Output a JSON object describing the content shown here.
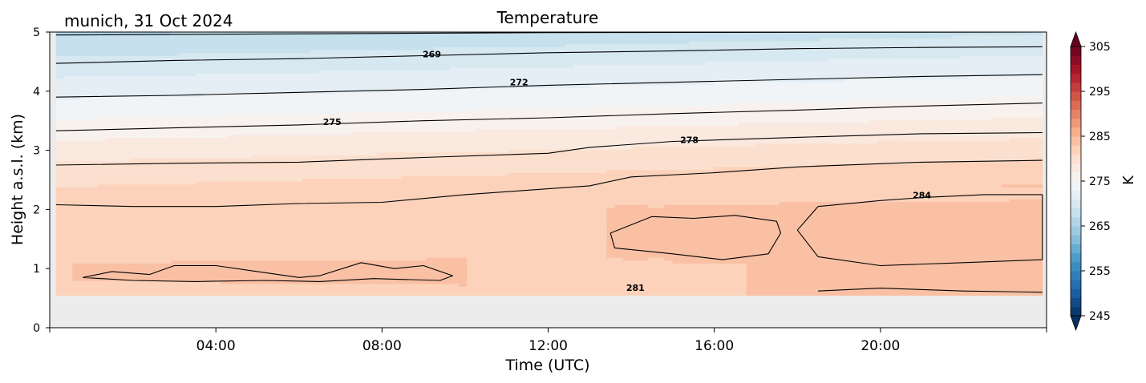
{
  "chart_data": {
    "type": "heatmap",
    "title": "Temperature",
    "location_label": "munich, 31 Oct 2024",
    "xlabel": "Time (UTC)",
    "ylabel": "Height a.s.l. (km)",
    "x_unit": "hours UTC on 31 Oct 2024",
    "xlim": [
      0,
      24
    ],
    "ylim": [
      0,
      5
    ],
    "x_ticks": [
      4,
      8,
      12,
      16,
      20
    ],
    "x_tick_labels": [
      "04:00",
      "08:00",
      "12:00",
      "16:00",
      "20:00"
    ],
    "y_ticks": [
      0,
      1,
      2,
      3,
      4,
      5
    ],
    "y_tick_labels": [
      "0",
      "1",
      "2",
      "3",
      "4",
      "5"
    ],
    "data_start_hour": 0.15,
    "data_end_hour": 23.9,
    "data_min_height_km": 0.55,
    "colormap": "RdBu_r",
    "colorbar": {
      "label": "K",
      "min": 245,
      "max": 305,
      "step": 2,
      "extend": "both",
      "ticks": [
        245,
        255,
        265,
        275,
        285,
        295,
        305
      ],
      "tick_labels": [
        "245",
        "255",
        "265",
        "275",
        "285",
        "295",
        "305"
      ]
    },
    "contour_levels": [
      269,
      272,
      275,
      278,
      281,
      284
    ],
    "contour_labels": [
      {
        "text": "269",
        "x": 9.2,
        "y": 4.63
      },
      {
        "text": "272",
        "x": 11.3,
        "y": 4.15
      },
      {
        "text": "275",
        "x": 6.8,
        "y": 3.48
      },
      {
        "text": "278",
        "x": 15.4,
        "y": 3.18
      },
      {
        "text": "281",
        "x": 14.1,
        "y": 0.68
      },
      {
        "text": "284",
        "x": 21.0,
        "y": 2.24
      }
    ],
    "isotherms": [
      {
        "level": 266,
        "points": [
          [
            0.15,
            4.95
          ],
          [
            6,
            4.97
          ],
          [
            12,
            4.99
          ],
          [
            23.9,
            5.0
          ]
        ]
      },
      {
        "level": 269,
        "points": [
          [
            0.15,
            4.47
          ],
          [
            3,
            4.52
          ],
          [
            6,
            4.55
          ],
          [
            9,
            4.6
          ],
          [
            12,
            4.65
          ],
          [
            15,
            4.68
          ],
          [
            18,
            4.72
          ],
          [
            21,
            4.74
          ],
          [
            23.9,
            4.75
          ]
        ]
      },
      {
        "level": 272,
        "points": [
          [
            0.15,
            3.9
          ],
          [
            3,
            3.93
          ],
          [
            6,
            3.98
          ],
          [
            9,
            4.03
          ],
          [
            12,
            4.1
          ],
          [
            15,
            4.15
          ],
          [
            18,
            4.2
          ],
          [
            21,
            4.25
          ],
          [
            23.9,
            4.28
          ]
        ]
      },
      {
        "level": 275,
        "points": [
          [
            0.15,
            3.33
          ],
          [
            3,
            3.38
          ],
          [
            6,
            3.43
          ],
          [
            9,
            3.5
          ],
          [
            12,
            3.55
          ],
          [
            15,
            3.62
          ],
          [
            18,
            3.68
          ],
          [
            21,
            3.75
          ],
          [
            23.9,
            3.8
          ]
        ]
      },
      {
        "level": 278,
        "points": [
          [
            0.15,
            2.75
          ],
          [
            3,
            2.78
          ],
          [
            6,
            2.8
          ],
          [
            9,
            2.88
          ],
          [
            12,
            2.95
          ],
          [
            13,
            3.05
          ],
          [
            15,
            3.15
          ],
          [
            18,
            3.22
          ],
          [
            21,
            3.28
          ],
          [
            23.9,
            3.3
          ]
        ]
      },
      {
        "level": 281,
        "points": [
          [
            0.15,
            2.08
          ],
          [
            2,
            2.05
          ],
          [
            4,
            2.05
          ],
          [
            6,
            2.1
          ],
          [
            8,
            2.12
          ],
          [
            10,
            2.25
          ],
          [
            12,
            2.35
          ],
          [
            13,
            2.4
          ],
          [
            14,
            2.55
          ],
          [
            16,
            2.62
          ],
          [
            18,
            2.72
          ],
          [
            21,
            2.8
          ],
          [
            23.9,
            2.83
          ]
        ]
      },
      {
        "level": 281,
        "points": [
          [
            18.5,
            0.62
          ],
          [
            20,
            0.67
          ],
          [
            22,
            0.62
          ],
          [
            23.9,
            0.6
          ]
        ]
      },
      {
        "level": 281,
        "points": [
          [
            0.8,
            0.85
          ],
          [
            1.5,
            0.95
          ],
          [
            2.4,
            0.9
          ],
          [
            3,
            1.05
          ],
          [
            4,
            1.05
          ],
          [
            5,
            0.95
          ],
          [
            6,
            0.85
          ],
          [
            6.5,
            0.88
          ],
          [
            7.5,
            1.1
          ],
          [
            8.3,
            1.0
          ],
          [
            9,
            1.05
          ],
          [
            9.7,
            0.88
          ],
          [
            9.4,
            0.8
          ],
          [
            7.8,
            0.83
          ],
          [
            6.5,
            0.78
          ],
          [
            5.2,
            0.8
          ],
          [
            3.5,
            0.78
          ],
          [
            2,
            0.8
          ],
          [
            0.8,
            0.85
          ]
        ]
      },
      {
        "level": 284,
        "points": [
          [
            18,
            1.65
          ],
          [
            18.5,
            2.05
          ],
          [
            20,
            2.15
          ],
          [
            21,
            2.2
          ],
          [
            22.5,
            2.25
          ],
          [
            23.9,
            2.25
          ],
          [
            23.9,
            1.15
          ],
          [
            22,
            1.1
          ],
          [
            20,
            1.05
          ],
          [
            18.5,
            1.2
          ],
          [
            18,
            1.65
          ]
        ]
      },
      {
        "level": 284,
        "points": [
          [
            13.5,
            1.6
          ],
          [
            14.5,
            1.88
          ],
          [
            15.5,
            1.85
          ],
          [
            16.5,
            1.9
          ],
          [
            17.5,
            1.8
          ],
          [
            17.6,
            1.6
          ],
          [
            17.3,
            1.25
          ],
          [
            16.2,
            1.15
          ],
          [
            15,
            1.25
          ],
          [
            13.6,
            1.35
          ],
          [
            13.5,
            1.6
          ]
        ]
      }
    ]
  }
}
